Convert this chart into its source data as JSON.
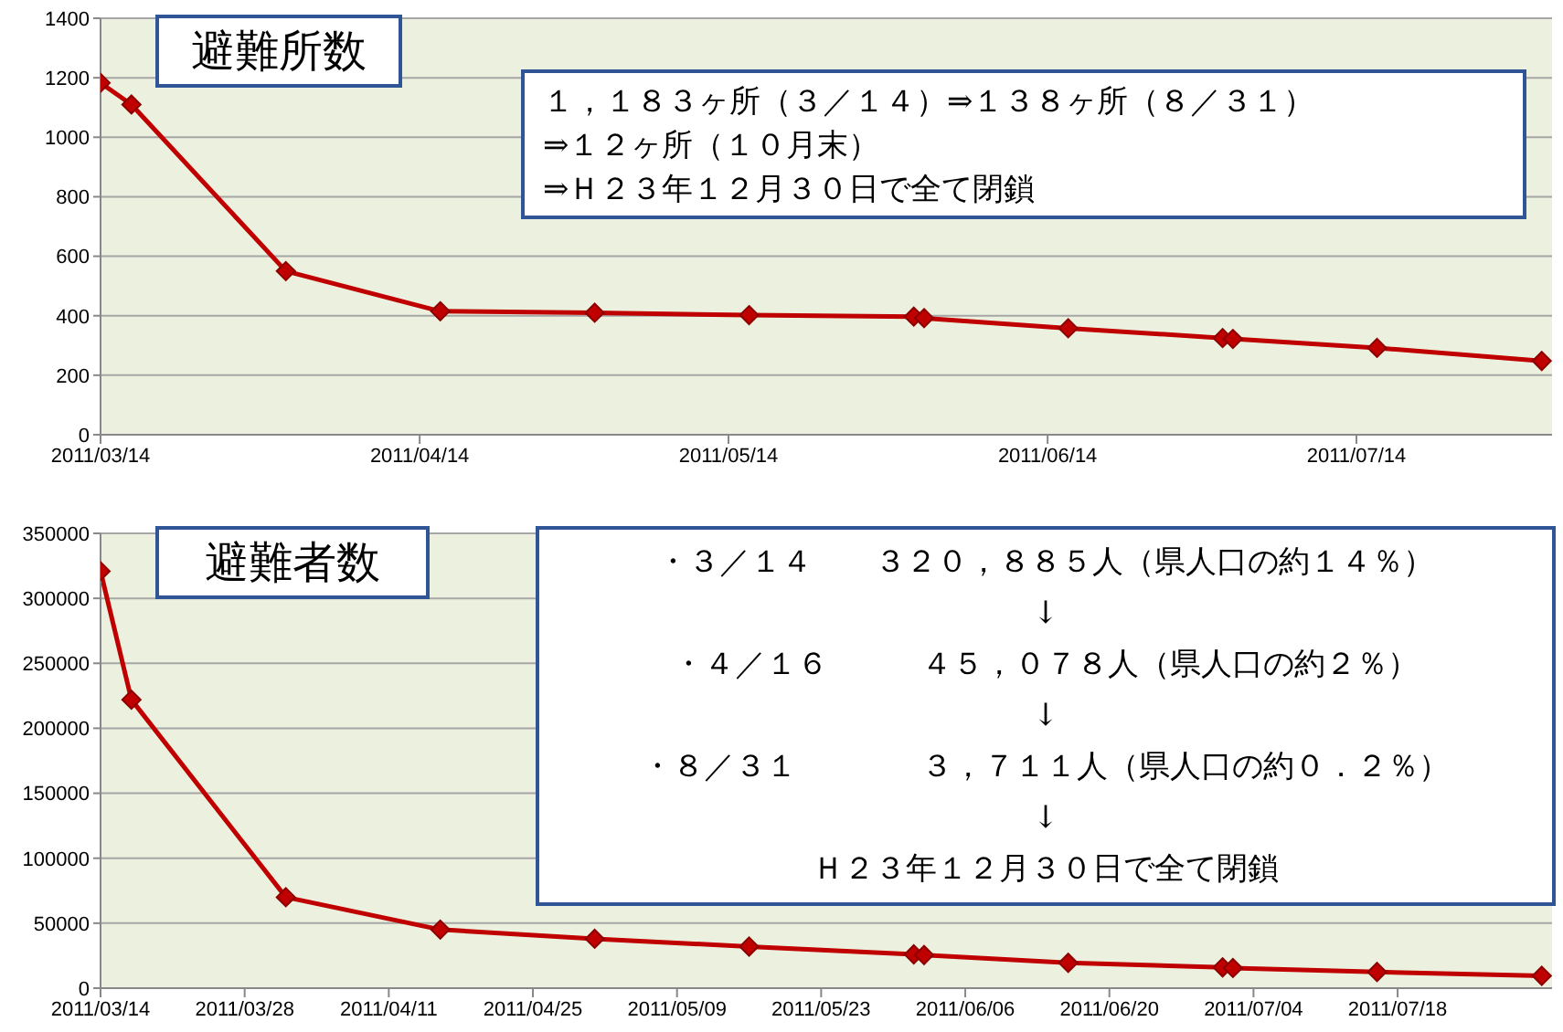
{
  "chart_data": [
    {
      "type": "line",
      "title": "避難所数",
      "x": [
        "2011-03-14",
        "2011-03-17",
        "2011-04-01",
        "2011-04-16",
        "2011-05-01",
        "2011-05-16",
        "2011-06-01",
        "2011-06-02",
        "2011-06-16",
        "2011-07-01",
        "2011-07-02",
        "2011-07-16",
        "2011-08-01"
      ],
      "series": [
        {
          "color": "#c00000",
          "values": [
            1183,
            1110,
            550,
            415,
            410,
            402,
            397,
            392,
            358,
            325,
            322,
            292,
            248
          ]
        }
      ],
      "xlim": [
        "2011-03-14",
        "2011-08-02"
      ],
      "xticks": [
        {
          "value": "2011-03-14",
          "label": "2011/03/14"
        },
        {
          "value": "2011-04-14",
          "label": "2011/04/14"
        },
        {
          "value": "2011-05-14",
          "label": "2011/05/14"
        },
        {
          "value": "2011-06-14",
          "label": "2011/06/14"
        },
        {
          "value": "2011-07-14",
          "label": "2011/07/14"
        }
      ],
      "ylim": [
        0,
        1400
      ],
      "yticks": [
        0,
        200,
        400,
        600,
        800,
        1000,
        1200,
        1400
      ],
      "grid": "y",
      "marker": "diamond",
      "legend": false,
      "annotations": [
        "１，１８３ヶ所（３／１４）⇒１３８ヶ所（８／３１）",
        "⇒１２ヶ所（１０月末）",
        "⇒Ｈ２３年１２月３０日で全て閉鎖"
      ]
    },
    {
      "type": "line",
      "title": "避難者数",
      "x": [
        "2011-03-14",
        "2011-03-17",
        "2011-04-01",
        "2011-04-16",
        "2011-05-01",
        "2011-05-16",
        "2011-06-01",
        "2011-06-02",
        "2011-06-16",
        "2011-07-01",
        "2011-07-02",
        "2011-07-16",
        "2011-08-01"
      ],
      "series": [
        {
          "color": "#c00000",
          "values": [
            320885,
            222000,
            70000,
            45078,
            38000,
            32000,
            26000,
            25500,
            19500,
            16000,
            15500,
            12500,
            9500
          ]
        }
      ],
      "xlim": [
        "2011-03-14",
        "2011-08-02"
      ],
      "xticks": [
        {
          "value": "2011-03-14",
          "label": "2011/03/14"
        },
        {
          "value": "2011-03-28",
          "label": "2011/03/28"
        },
        {
          "value": "2011-04-11",
          "label": "2011/04/11"
        },
        {
          "value": "2011-04-25",
          "label": "2011/04/25"
        },
        {
          "value": "2011-05-09",
          "label": "2011/05/09"
        },
        {
          "value": "2011-05-23",
          "label": "2011/05/23"
        },
        {
          "value": "2011-06-06",
          "label": "2011/06/06"
        },
        {
          "value": "2011-06-20",
          "label": "2011/06/20"
        },
        {
          "value": "2011-07-04",
          "label": "2011/07/04"
        },
        {
          "value": "2011-07-18",
          "label": "2011/07/18"
        }
      ],
      "ylim": [
        0,
        350000
      ],
      "yticks": [
        0,
        50000,
        100000,
        150000,
        200000,
        250000,
        300000,
        350000
      ],
      "grid": "y",
      "marker": "diamond",
      "legend": false,
      "annotations": [
        "・３／１４　　３２０，８８５人（県人口の約１４％）",
        "↓",
        "・４／１６　　　４５，０７８人（県人口の約２％）",
        "↓",
        "・８／３１　　　　３，７１１人（県人口の約０．２％）",
        "↓",
        "Ｈ２３年１２月３０日で全て閉鎖"
      ]
    }
  ]
}
